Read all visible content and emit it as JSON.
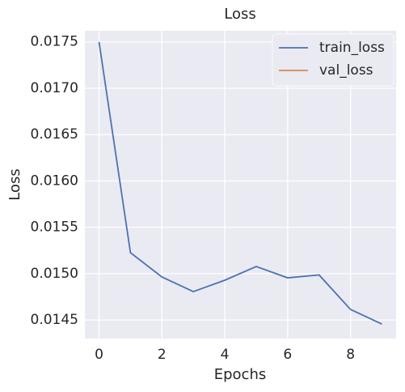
{
  "chart_data": {
    "type": "line",
    "title": "Loss",
    "xlabel": "Epochs",
    "ylabel": "Loss",
    "x": [
      0,
      1,
      2,
      3,
      4,
      5,
      6,
      7,
      8,
      9
    ],
    "series": [
      {
        "name": "train_loss",
        "color": "#4c72b0",
        "values": [
          0.0175,
          0.015226,
          0.014964,
          0.014806,
          0.014929,
          0.015077,
          0.014955,
          0.014986,
          0.014614,
          0.014456
        ]
      },
      {
        "name": "val_loss",
        "color": "#dd8452",
        "values": [
          null,
          null,
          null,
          null,
          null,
          null,
          null,
          null,
          null,
          null
        ]
      }
    ],
    "xlim": [
      -0.45,
      9.45
    ],
    "xticks": [
      0,
      2,
      4,
      6,
      8
    ],
    "ylim": [
      0.0143,
      0.01762
    ],
    "yticks": [
      0.0145,
      {
        "value": 0.015,
        "label": "0.0150"
      },
      0.0155,
      {
        "value": 0.016,
        "label": "0.0160"
      },
      0.0165,
      {
        "value": 0.017,
        "label": "0.0170"
      },
      0.0175
    ],
    "grid": true,
    "legend": "upper right"
  }
}
